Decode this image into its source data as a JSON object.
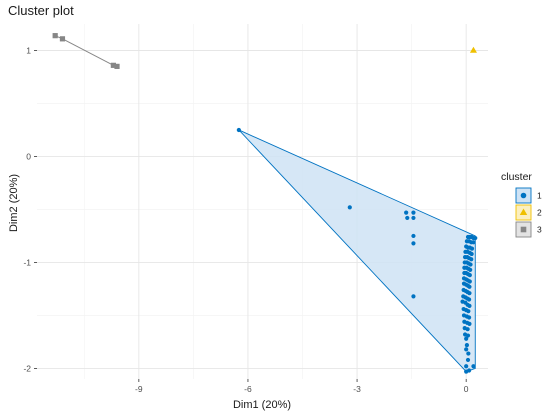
{
  "chart_data": {
    "type": "scatter",
    "title": "Cluster plot",
    "xlabel": "Dim1 (20%)",
    "ylabel": "Dim2 (20%)",
    "xlim": [
      -11.8,
      0.6
    ],
    "ylim": [
      -2.1,
      1.25
    ],
    "x_ticks": [
      -9,
      -6,
      -3,
      0
    ],
    "x_tick_labels": [
      "-9",
      "-6",
      "-3",
      "0"
    ],
    "y_ticks": [
      1,
      0,
      -1,
      -2
    ],
    "y_tick_labels": [
      "1",
      "0",
      "-1",
      "-2"
    ],
    "grid": true,
    "legend": {
      "title": "cluster",
      "position": "right",
      "items": [
        {
          "label": "1",
          "color": "#0073C2",
          "shape": "circle"
        },
        {
          "label": "2",
          "color": "#EFC000",
          "shape": "triangle"
        },
        {
          "label": "3",
          "color": "#868686",
          "shape": "square"
        }
      ]
    },
    "series": [
      {
        "name": "1",
        "color": "#0073C2",
        "hull_fill": "#cfe3f5",
        "hull": [
          [
            -6.25,
            0.25
          ],
          [
            0.25,
            -0.75
          ],
          [
            0.25,
            -2.0
          ],
          [
            0.0,
            -2.03
          ]
        ],
        "points": [
          [
            -6.25,
            0.25
          ],
          [
            -3.2,
            -0.48
          ],
          [
            -1.65,
            -0.53
          ],
          [
            -1.62,
            -0.58
          ],
          [
            -1.45,
            -0.53
          ],
          [
            -1.45,
            -0.58
          ],
          [
            -1.45,
            -0.75
          ],
          [
            -1.45,
            -0.82
          ],
          [
            -1.45,
            -1.32
          ],
          [
            0.05,
            -0.76
          ],
          [
            0.1,
            -0.76
          ],
          [
            0.15,
            -0.76
          ],
          [
            0.2,
            -0.77
          ],
          [
            0.25,
            -0.77
          ],
          [
            0.02,
            -0.8
          ],
          [
            0.08,
            -0.8
          ],
          [
            0.14,
            -0.81
          ],
          [
            0.2,
            -0.81
          ],
          [
            0.0,
            -0.85
          ],
          [
            0.05,
            -0.86
          ],
          [
            0.1,
            -0.86
          ],
          [
            0.16,
            -0.87
          ],
          [
            -0.02,
            -0.9
          ],
          [
            0.04,
            -0.9
          ],
          [
            0.1,
            -0.91
          ],
          [
            0.15,
            -0.92
          ],
          [
            -0.03,
            -0.95
          ],
          [
            0.03,
            -0.95
          ],
          [
            0.08,
            -0.96
          ],
          [
            0.14,
            -0.97
          ],
          [
            -0.04,
            -1.0
          ],
          [
            0.02,
            -1.0
          ],
          [
            0.07,
            -1.01
          ],
          [
            0.12,
            -1.02
          ],
          [
            -0.05,
            -1.05
          ],
          [
            0.01,
            -1.05
          ],
          [
            0.06,
            -1.06
          ],
          [
            0.11,
            -1.07
          ],
          [
            -0.05,
            -1.1
          ],
          [
            0.0,
            -1.1
          ],
          [
            0.05,
            -1.11
          ],
          [
            0.1,
            -1.12
          ],
          [
            -0.06,
            -1.15
          ],
          [
            0.0,
            -1.16
          ],
          [
            0.05,
            -1.17
          ],
          [
            0.1,
            -1.18
          ],
          [
            -0.06,
            -1.2
          ],
          [
            0.0,
            -1.21
          ],
          [
            0.05,
            -1.22
          ],
          [
            0.09,
            -1.23
          ],
          [
            -0.07,
            -1.26
          ],
          [
            -0.01,
            -1.27
          ],
          [
            0.04,
            -1.28
          ],
          [
            0.09,
            -1.29
          ],
          [
            -0.08,
            -1.32
          ],
          [
            -0.02,
            -1.33
          ],
          [
            0.03,
            -1.34
          ],
          [
            0.08,
            -1.35
          ],
          [
            -0.1,
            -1.37
          ],
          [
            -0.02,
            -1.38
          ],
          [
            0.04,
            -1.4
          ],
          [
            0.09,
            -1.41
          ],
          [
            -0.07,
            -1.44
          ],
          [
            0.0,
            -1.45
          ],
          [
            0.06,
            -1.46
          ],
          [
            -0.06,
            -1.5
          ],
          [
            0.02,
            -1.51
          ],
          [
            0.08,
            -1.52
          ],
          [
            -0.05,
            -1.56
          ],
          [
            0.03,
            -1.57
          ],
          [
            0.09,
            -1.58
          ],
          [
            -0.04,
            -1.62
          ],
          [
            0.04,
            -1.63
          ],
          [
            -0.03,
            -1.68
          ],
          [
            0.05,
            -1.69
          ],
          [
            0.0,
            -1.72
          ],
          [
            0.02,
            -1.78
          ],
          [
            0.0,
            -1.82
          ],
          [
            0.06,
            -1.86
          ],
          [
            0.05,
            -1.92
          ],
          [
            0.0,
            -1.98
          ],
          [
            0.2,
            -1.98
          ],
          [
            0.08,
            -2.02
          ],
          [
            0.0,
            -2.03
          ]
        ]
      },
      {
        "name": "2",
        "color": "#EFC000",
        "points": [
          [
            0.2,
            1.0
          ]
        ]
      },
      {
        "name": "3",
        "color": "#868686",
        "points": [
          [
            -11.3,
            1.14
          ],
          [
            -11.1,
            1.11
          ],
          [
            -9.7,
            0.86
          ],
          [
            -9.6,
            0.85
          ]
        ]
      }
    ]
  }
}
